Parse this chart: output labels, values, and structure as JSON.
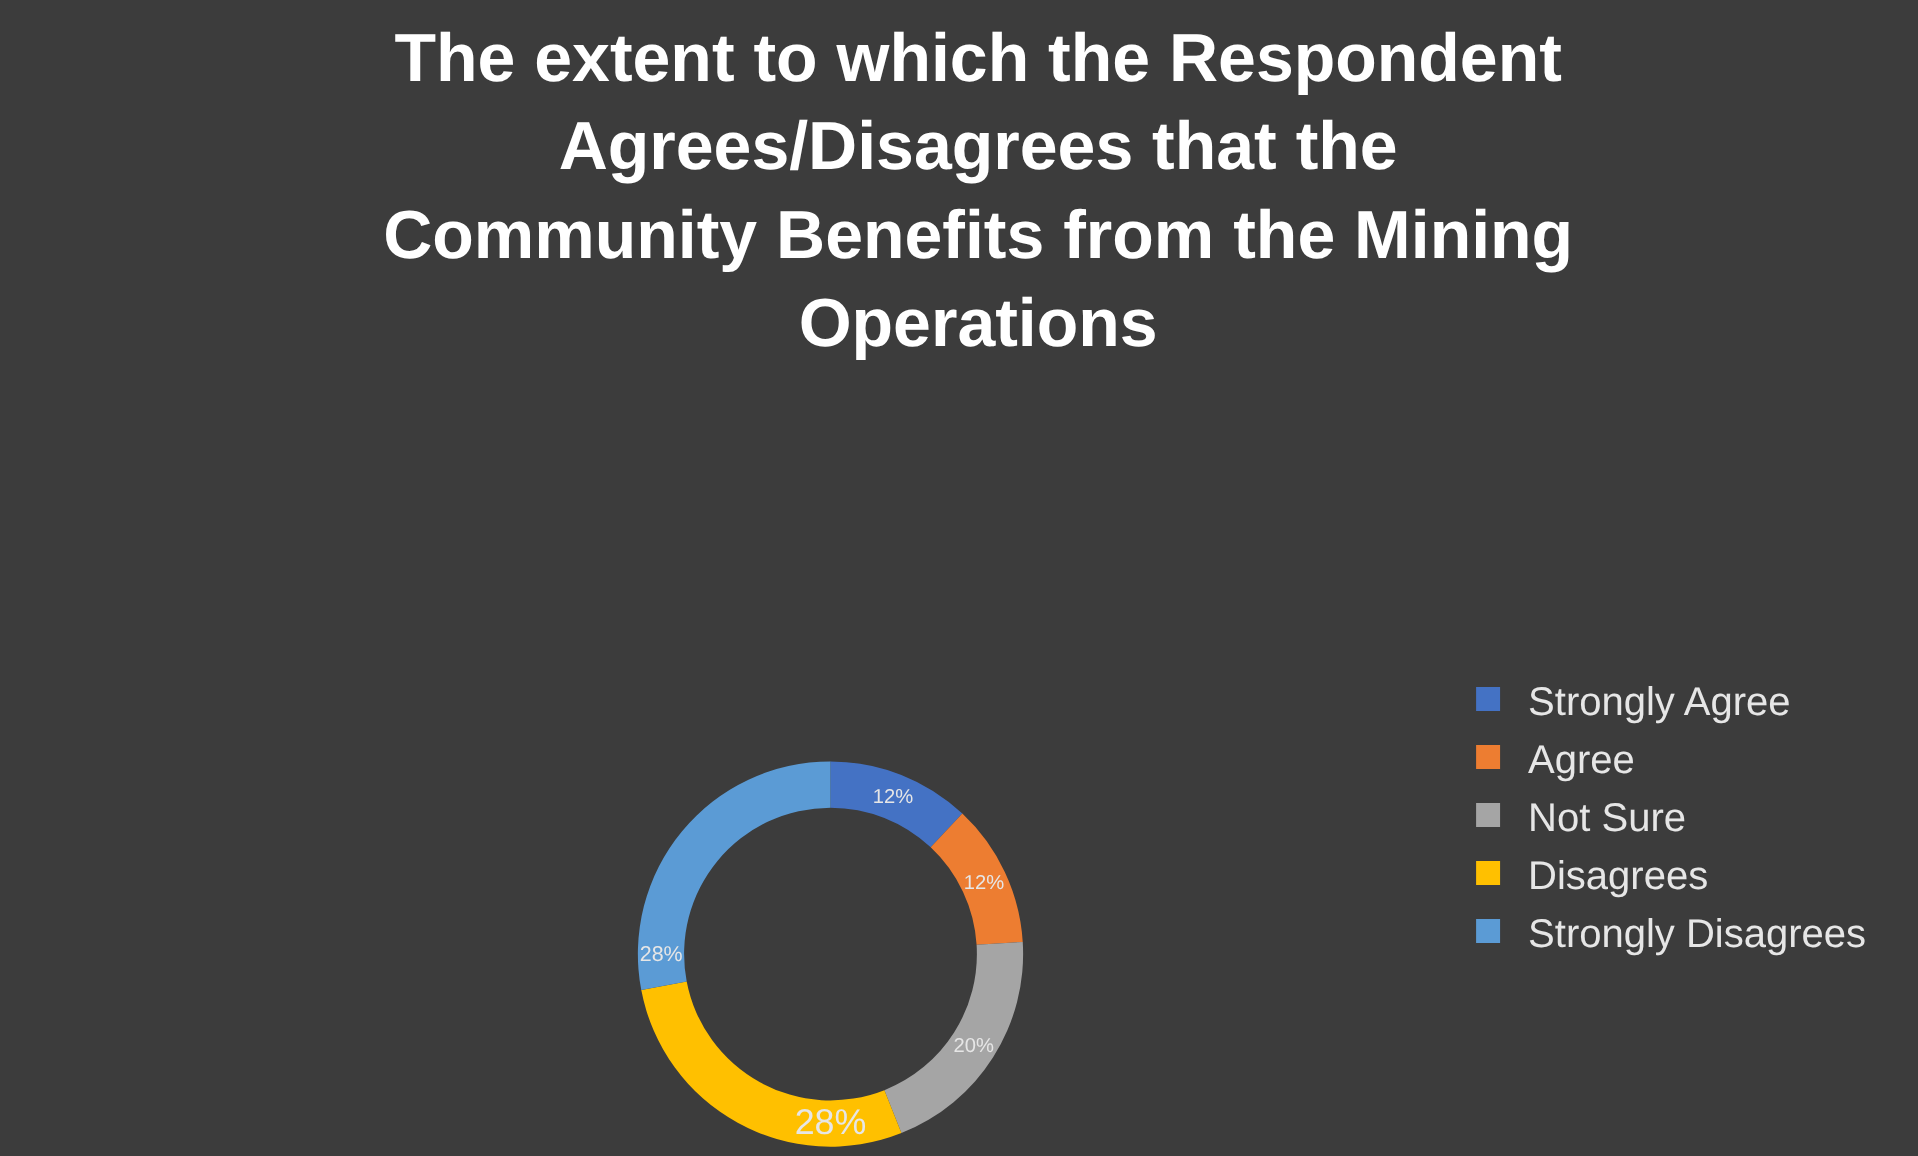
{
  "chart_data": {
    "type": "donut",
    "title": "The extent to which the Respondent Agrees/Disagrees that the Community Benefits from the Mining Operations",
    "categories": [
      "Strongly Agree",
      "Agree",
      "Not Sure",
      "Disagrees",
      "Strongly Disagrees"
    ],
    "values": [
      12,
      12,
      20,
      28,
      28
    ],
    "value_labels": [
      "12%",
      "12%",
      "20%",
      "28%",
      "28%"
    ],
    "colors": [
      "#4472c4",
      "#ed7d31",
      "#a5a5a5",
      "#ffc000",
      "#5b9bd5"
    ],
    "legend": "right"
  }
}
